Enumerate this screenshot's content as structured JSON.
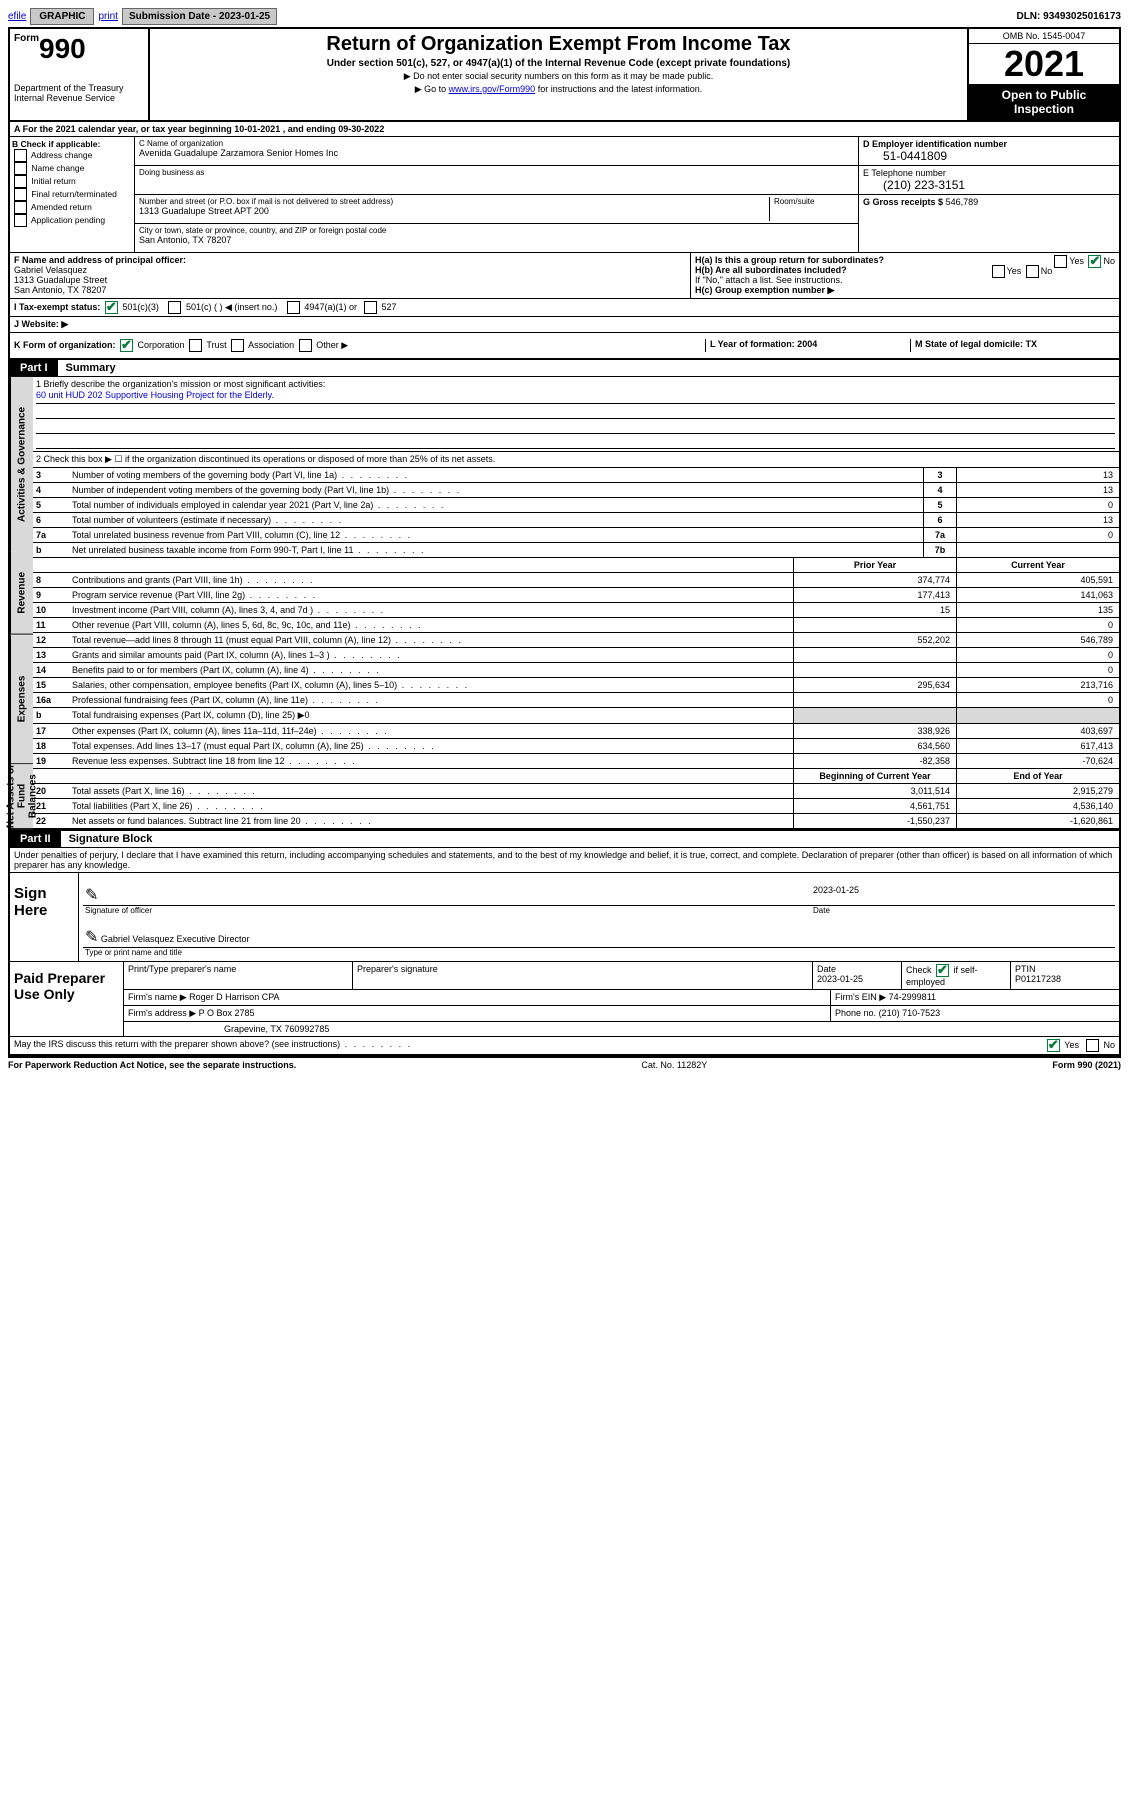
{
  "colors": {
    "link": "#0000cc",
    "check_green": "#0a7a3a",
    "grey_bg": "#d9d9d9",
    "black": "#000000",
    "white": "#ffffff",
    "btn_grey": "#c8c8c8"
  },
  "top_bar": {
    "efile": "efile",
    "graphic": "GRAPHIC",
    "print": "print",
    "submission_label": "Submission Date - 2023-01-25",
    "dln": "DLN: 93493025016173"
  },
  "header": {
    "form_small": "Form",
    "form_num": "990",
    "title": "Return of Organization Exempt From Income Tax",
    "sub": "Under section 501(c), 527, or 4947(a)(1) of the Internal Revenue Code (except private foundations)",
    "note1": "▶ Do not enter social security numbers on this form as it may be made public.",
    "note2_pre": "▶ Go to ",
    "note2_link": "www.irs.gov/Form990",
    "note2_post": " for instructions and the latest information.",
    "dept": "Department of the Treasury",
    "irs": "Internal Revenue Service",
    "omb": "OMB No. 1545-0047",
    "year": "2021",
    "inspection": "Open to Public Inspection"
  },
  "line_a": "A For the 2021 calendar year, or tax year beginning 10-01-2021   , and ending 09-30-2022",
  "section_b": {
    "title": "B Check if applicable:",
    "items": [
      "Address change",
      "Name change",
      "Initial return",
      "Final return/terminated",
      "Amended return",
      "Application pending"
    ]
  },
  "section_c": {
    "name_label": "C Name of organization",
    "name": "Avenida Guadalupe Zarzamora Senior Homes Inc",
    "dba_label": "Doing business as",
    "dba": "",
    "addr_label": "Number and street (or P.O. box if mail is not delivered to street address)",
    "suite_label": "Room/suite",
    "addr": "1313 Guadalupe Street APT 200",
    "city_label": "City or town, state or province, country, and ZIP or foreign postal code",
    "city": "San Antonio, TX  78207"
  },
  "section_d": {
    "ein_label": "D Employer identification number",
    "ein": "51-0441809",
    "phone_label": "E Telephone number",
    "phone": "(210) 223-3151",
    "gross_label": "G Gross receipts $",
    "gross": "546,789"
  },
  "section_f": {
    "label": "F Name and address of principal officer:",
    "name": "Gabriel Velasquez",
    "addr1": "1313 Guadalupe Street",
    "addr2": "San Antonio, TX  78207"
  },
  "section_h": {
    "ha": "H(a)  Is this a group return for subordinates?",
    "hb": "H(b)  Are all subordinates included?",
    "hb_note": "If \"No,\" attach a list. See instructions.",
    "hc": "H(c)  Group exemption number ▶",
    "yes": "Yes",
    "no": "No"
  },
  "section_i": {
    "label": "I     Tax-exempt status:",
    "opt1": "501(c)(3)",
    "opt2": "501(c) (  ) ◀ (insert no.)",
    "opt3": "4947(a)(1) or",
    "opt4": "527"
  },
  "section_j": {
    "label": "J    Website: ▶"
  },
  "section_k": {
    "label": "K Form of organization:",
    "opts": [
      "Corporation",
      "Trust",
      "Association",
      "Other ▶"
    ],
    "l": "L Year of formation: 2004",
    "m": "M State of legal domicile: TX"
  },
  "part1": {
    "label": "Part I",
    "title": "Summary",
    "side_labels": [
      "Activities & Governance",
      "Revenue",
      "Expenses",
      "Net Assets or Fund Balances"
    ],
    "mission_label": "1   Briefly describe the organization's mission or most significant activities:",
    "mission": "60 unit HUD 202 Supportive Housing Project for the Elderly.",
    "line2": "2   Check this box ▶ ☐  if the organization discontinued its operations or disposed of more than 25% of its net assets.",
    "rows_gov": [
      {
        "n": "3",
        "d": "Number of voting members of the governing body (Part VI, line 1a)",
        "box": "3",
        "v": "13"
      },
      {
        "n": "4",
        "d": "Number of independent voting members of the governing body (Part VI, line 1b)",
        "box": "4",
        "v": "13"
      },
      {
        "n": "5",
        "d": "Total number of individuals employed in calendar year 2021 (Part V, line 2a)",
        "box": "5",
        "v": "0"
      },
      {
        "n": "6",
        "d": "Total number of volunteers (estimate if necessary)",
        "box": "6",
        "v": "13"
      },
      {
        "n": "7a",
        "d": "Total unrelated business revenue from Part VIII, column (C), line 12",
        "box": "7a",
        "v": "0"
      },
      {
        "n": "b",
        "d": "Net unrelated business taxable income from Form 990-T, Part I, line 11",
        "box": "7b",
        "v": ""
      }
    ],
    "col_hdr": {
      "prior": "Prior Year",
      "current": "Current Year"
    },
    "rows_rev": [
      {
        "n": "8",
        "d": "Contributions and grants (Part VIII, line 1h)",
        "p": "374,774",
        "c": "405,591"
      },
      {
        "n": "9",
        "d": "Program service revenue (Part VIII, line 2g)",
        "p": "177,413",
        "c": "141,063"
      },
      {
        "n": "10",
        "d": "Investment income (Part VIII, column (A), lines 3, 4, and 7d )",
        "p": "15",
        "c": "135"
      },
      {
        "n": "11",
        "d": "Other revenue (Part VIII, column (A), lines 5, 6d, 8c, 9c, 10c, and 11e)",
        "p": "",
        "c": "0"
      },
      {
        "n": "12",
        "d": "Total revenue—add lines 8 through 11 (must equal Part VIII, column (A), line 12)",
        "p": "552,202",
        "c": "546,789"
      }
    ],
    "rows_exp": [
      {
        "n": "13",
        "d": "Grants and similar amounts paid (Part IX, column (A), lines 1–3 )",
        "p": "",
        "c": "0"
      },
      {
        "n": "14",
        "d": "Benefits paid to or for members (Part IX, column (A), line 4)",
        "p": "",
        "c": "0"
      },
      {
        "n": "15",
        "d": "Salaries, other compensation, employee benefits (Part IX, column (A), lines 5–10)",
        "p": "295,634",
        "c": "213,716"
      },
      {
        "n": "16a",
        "d": "Professional fundraising fees (Part IX, column (A), line 11e)",
        "p": "",
        "c": "0"
      },
      {
        "n": "b",
        "d": "Total fundraising expenses (Part IX, column (D), line 25) ▶0",
        "p": "",
        "c": "",
        "grey": true
      },
      {
        "n": "17",
        "d": "Other expenses (Part IX, column (A), lines 11a–11d, 11f–24e)",
        "p": "338,926",
        "c": "403,697"
      },
      {
        "n": "18",
        "d": "Total expenses. Add lines 13–17 (must equal Part IX, column (A), line 25)",
        "p": "634,560",
        "c": "617,413"
      },
      {
        "n": "19",
        "d": "Revenue less expenses. Subtract line 18 from line 12",
        "p": "-82,358",
        "c": "-70,624"
      }
    ],
    "col_hdr2": {
      "beg": "Beginning of Current Year",
      "end": "End of Year"
    },
    "rows_net": [
      {
        "n": "20",
        "d": "Total assets (Part X, line 16)",
        "p": "3,011,514",
        "c": "2,915,279"
      },
      {
        "n": "21",
        "d": "Total liabilities (Part X, line 26)",
        "p": "4,561,751",
        "c": "4,536,140"
      },
      {
        "n": "22",
        "d": "Net assets or fund balances. Subtract line 21 from line 20",
        "p": "-1,550,237",
        "c": "-1,620,861"
      }
    ]
  },
  "part2": {
    "label": "Part II",
    "title": "Signature Block",
    "penalty": "Under penalties of perjury, I declare that I have examined this return, including accompanying schedules and statements, and to the best of my knowledge and belief, it is true, correct, and complete. Declaration of preparer (other than officer) is based on all information of which preparer has any knowledge."
  },
  "sign": {
    "label": "Sign Here",
    "sig_label": "Signature of officer",
    "date_label": "Date",
    "date": "2023-01-25",
    "name": "Gabriel Velasquez Executive Director",
    "name_label": "Type or print name and title"
  },
  "paid": {
    "label": "Paid Preparer Use Only",
    "r1": {
      "c1": "Print/Type preparer's name",
      "c2": "Preparer's signature",
      "c3_l": "Date",
      "c3": "2023-01-25",
      "c4_l": "Check",
      "c4_t": "if self-employed",
      "c5_l": "PTIN",
      "c5": "P01217238"
    },
    "r2": {
      "c1_l": "Firm's name    ▶",
      "c1": "Roger D Harrison CPA",
      "c2_l": "Firm's EIN ▶",
      "c2": "74-2999811"
    },
    "r3": {
      "c1_l": "Firm's address ▶",
      "c1": "P O Box 2785",
      "c2_l": "Phone no.",
      "c2": "(210) 710-7523"
    },
    "r4": {
      "c1": "Grapevine, TX  760992785"
    }
  },
  "discuss": {
    "text": "May the IRS discuss this return with the preparer shown above? (see instructions)",
    "yes": "Yes",
    "no": "No"
  },
  "footer": {
    "left": "For Paperwork Reduction Act Notice, see the separate instructions.",
    "mid": "Cat. No. 11282Y",
    "right": "Form 990 (2021)"
  }
}
